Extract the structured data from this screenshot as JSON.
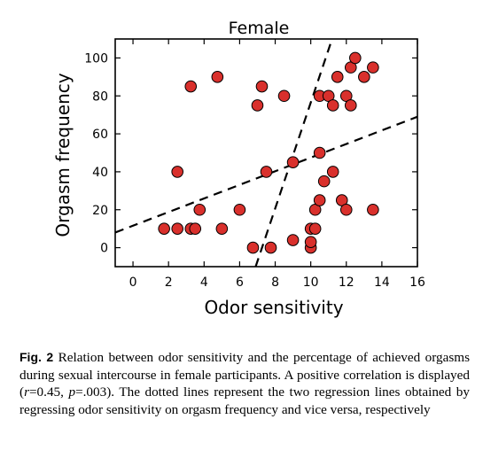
{
  "chart_data": {
    "type": "scatter",
    "title": "Female",
    "xlabel": "Odor sensitivity",
    "ylabel": "Orgasm frequency",
    "xlim": [
      -1,
      16
    ],
    "ylim": [
      -10,
      110
    ],
    "xticks": [
      "0",
      "2",
      "4",
      "6",
      "8",
      "10",
      "12",
      "14",
      "16"
    ],
    "yticks": [
      "0",
      "20",
      "40",
      "60",
      "80",
      "100"
    ],
    "grid": false,
    "marker_color": "#d9302c",
    "points": [
      {
        "x": 1.75,
        "y": 10
      },
      {
        "x": 2.5,
        "y": 10
      },
      {
        "x": 3.25,
        "y": 10
      },
      {
        "x": 3.5,
        "y": 10
      },
      {
        "x": 2.5,
        "y": 40
      },
      {
        "x": 3.25,
        "y": 85
      },
      {
        "x": 3.75,
        "y": 20
      },
      {
        "x": 4.75,
        "y": 90
      },
      {
        "x": 5,
        "y": 10
      },
      {
        "x": 6,
        "y": 20
      },
      {
        "x": 6.75,
        "y": 0
      },
      {
        "x": 7,
        "y": 75
      },
      {
        "x": 7.25,
        "y": 85
      },
      {
        "x": 7.5,
        "y": 40
      },
      {
        "x": 7.75,
        "y": 0
      },
      {
        "x": 8.5,
        "y": 80
      },
      {
        "x": 9,
        "y": 4
      },
      {
        "x": 9,
        "y": 45
      },
      {
        "x": 10,
        "y": 0
      },
      {
        "x": 10,
        "y": 3
      },
      {
        "x": 10,
        "y": 10
      },
      {
        "x": 10.25,
        "y": 10
      },
      {
        "x": 10.25,
        "y": 20
      },
      {
        "x": 10.5,
        "y": 25
      },
      {
        "x": 10.5,
        "y": 50
      },
      {
        "x": 10.5,
        "y": 80
      },
      {
        "x": 10.75,
        "y": 35
      },
      {
        "x": 11,
        "y": 80
      },
      {
        "x": 11.25,
        "y": 75
      },
      {
        "x": 11.25,
        "y": 40
      },
      {
        "x": 11.5,
        "y": 90
      },
      {
        "x": 11.75,
        "y": 25
      },
      {
        "x": 12,
        "y": 20
      },
      {
        "x": 12,
        "y": 80
      },
      {
        "x": 12.25,
        "y": 75
      },
      {
        "x": 12.25,
        "y": 95
      },
      {
        "x": 12.5,
        "y": 100
      },
      {
        "x": 13,
        "y": 90
      },
      {
        "x": 13.5,
        "y": 95
      },
      {
        "x": 13.5,
        "y": 20
      }
    ],
    "regression_lines": [
      {
        "x": [
          -1,
          16
        ],
        "y": [
          8,
          69
        ]
      },
      {
        "x": [
          6.9,
          11.2
        ],
        "y": [
          -10,
          110
        ]
      }
    ]
  },
  "caption": {
    "label": "Fig. 2",
    "parts": [
      " Relation between odor sensitivity and the percentage of achieved orgasms during sexual intercourse in female participants. A positive correlation is displayed (",
      "r",
      "=0.45, ",
      "p",
      "=.003). The dotted lines represent the two regression lines obtained by regressing odor sensitivity on orgasm frequency and vice versa, respectively"
    ]
  }
}
